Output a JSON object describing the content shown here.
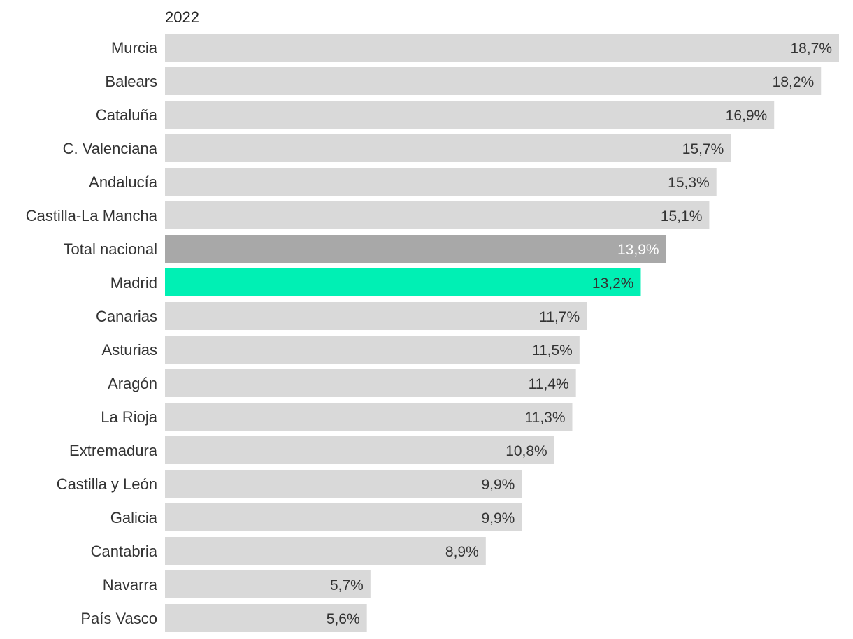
{
  "chart_data": {
    "type": "bar",
    "orientation": "horizontal",
    "title": "2022",
    "categories": [
      "Murcia",
      "Balears",
      "Cataluña",
      "C. Valenciana",
      "Andalucía",
      "Castilla-La Mancha",
      "Total nacional",
      "Madrid",
      "Canarias",
      "Asturias",
      "Aragón",
      "La Rioja",
      "Extremadura",
      "Castilla y León",
      "Galicia",
      "Cantabria",
      "Navarra",
      "País Vasco"
    ],
    "values": [
      18.7,
      18.2,
      16.9,
      15.7,
      15.3,
      15.1,
      13.9,
      13.2,
      11.7,
      11.5,
      11.4,
      11.3,
      10.8,
      9.9,
      9.9,
      8.9,
      5.7,
      5.6
    ],
    "value_labels": [
      "18,7%",
      "18,2%",
      "16,9%",
      "15,7%",
      "15,3%",
      "15,1%",
      "13,9%",
      "13,2%",
      "11,7%",
      "11,5%",
      "11,4%",
      "11,3%",
      "10,8%",
      "9,9%",
      "9,9%",
      "8,9%",
      "5,7%",
      "5,6%"
    ],
    "xlim": [
      0,
      18.7
    ],
    "xlabel": "",
    "ylabel": "",
    "grid": false,
    "legend": "none",
    "highlights": {
      "Total nacional": "total",
      "Madrid": "madrid"
    }
  },
  "colors": {
    "default_bar": "#d9d9d9",
    "total_bar": "#a8a8a8",
    "madrid_bar": "#00f0b4",
    "default_text": "#333333",
    "total_text": "#ffffff",
    "madrid_text": "#333333"
  }
}
